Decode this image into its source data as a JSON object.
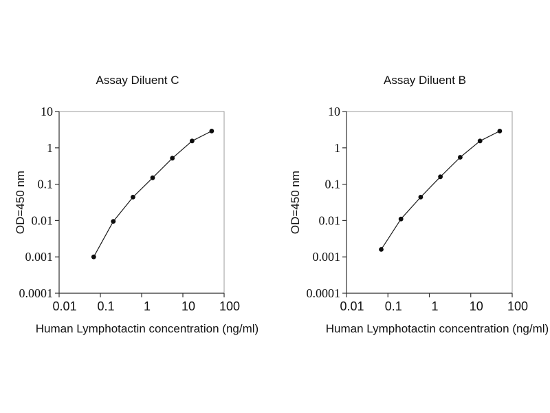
{
  "figure": {
    "background": "#ffffff",
    "text_color": "#111111",
    "frame_color": "#9b9b9b",
    "axis_color": "#2e2e2e",
    "line_color": "#1a1a1a",
    "marker_color": "#0d0d0d"
  },
  "chart_data": [
    {
      "type": "line",
      "title": "Assay Diluent C",
      "xlabel": "Human Lymphotactin concentration (ng/ml)",
      "ylabel": "OD=450 nm",
      "xscale": "log",
      "yscale": "log",
      "xlim": [
        0.01,
        100
      ],
      "ylim": [
        0.0001,
        10
      ],
      "x_ticks": [
        "0.01",
        "0.1",
        "1",
        "10",
        "100"
      ],
      "y_ticks": [
        "10",
        "1",
        "0.1",
        "0.01",
        "0.001",
        "0.0001"
      ],
      "grid": false,
      "marker": "filled-circle",
      "x": [
        0.069,
        0.206,
        0.617,
        1.85,
        5.56,
        16.7,
        50
      ],
      "y": [
        0.001,
        0.0095,
        0.044,
        0.15,
        0.52,
        1.55,
        2.9
      ]
    },
    {
      "type": "line",
      "title": "Assay Diluent B",
      "xlabel": "Human Lymphotactin concentration (ng/ml)",
      "ylabel": "OD=450 nm",
      "xscale": "log",
      "yscale": "log",
      "xlim": [
        0.01,
        100
      ],
      "ylim": [
        0.0001,
        10
      ],
      "x_ticks": [
        "0.01",
        "0.1",
        "1",
        "10",
        "100"
      ],
      "y_ticks": [
        "10",
        "1",
        "0.1",
        "0.01",
        "0.001",
        "0.0001"
      ],
      "grid": false,
      "marker": "filled-circle",
      "x": [
        0.069,
        0.206,
        0.617,
        1.85,
        5.56,
        16.7,
        50
      ],
      "y": [
        0.0016,
        0.011,
        0.044,
        0.16,
        0.55,
        1.55,
        2.9
      ]
    }
  ]
}
